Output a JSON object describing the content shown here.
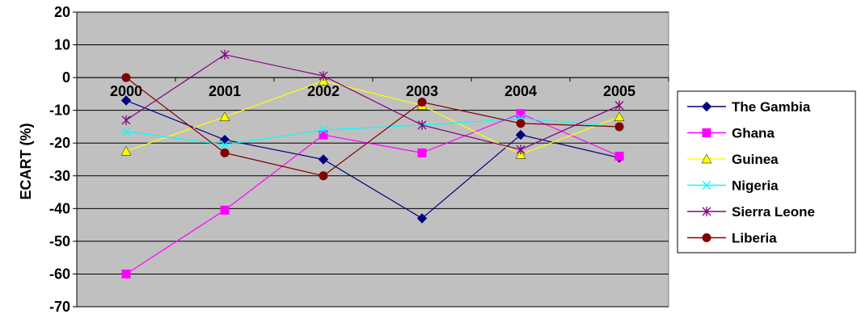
{
  "chart_data": {
    "type": "line",
    "title": "",
    "xlabel": "",
    "ylabel": "ECART (%)",
    "categories": [
      "2000",
      "2001",
      "2002",
      "2003",
      "2004",
      "2005"
    ],
    "ylim": [
      -70,
      20
    ],
    "yticks": [
      20,
      10,
      0,
      -10,
      -20,
      -30,
      -40,
      -50,
      -60,
      -70
    ],
    "grid": true,
    "legend": "right",
    "plot_background": "#c0c0c0",
    "series": [
      {
        "name": "The Gambia",
        "color": "#000080",
        "marker": "diamond",
        "values": [
          -7,
          -19,
          -25,
          -43,
          -17.5,
          -24.5
        ]
      },
      {
        "name": "Ghana",
        "color": "#ff00ff",
        "marker": "square",
        "values": [
          -60,
          -40.5,
          -17.5,
          -23,
          -11,
          -24
        ]
      },
      {
        "name": "Guinea",
        "color": "#ffff00",
        "marker": "triangle",
        "values": [
          -22.5,
          -12,
          -1,
          -8.5,
          -23.5,
          -12
        ]
      },
      {
        "name": "Nigeria",
        "color": "#00ffff",
        "marker": "x",
        "values": [
          -16.5,
          -20.5,
          -16,
          -14.5,
          -12.5,
          -15
        ]
      },
      {
        "name": "Sierra Leone",
        "color": "#800080",
        "marker": "star",
        "values": [
          -13,
          7,
          0.5,
          -14.5,
          -22,
          -8.5
        ]
      },
      {
        "name": "Liberia",
        "color": "#800000",
        "marker": "circle",
        "values": [
          0,
          -23,
          -30,
          -7.5,
          -14,
          -15
        ]
      }
    ]
  }
}
